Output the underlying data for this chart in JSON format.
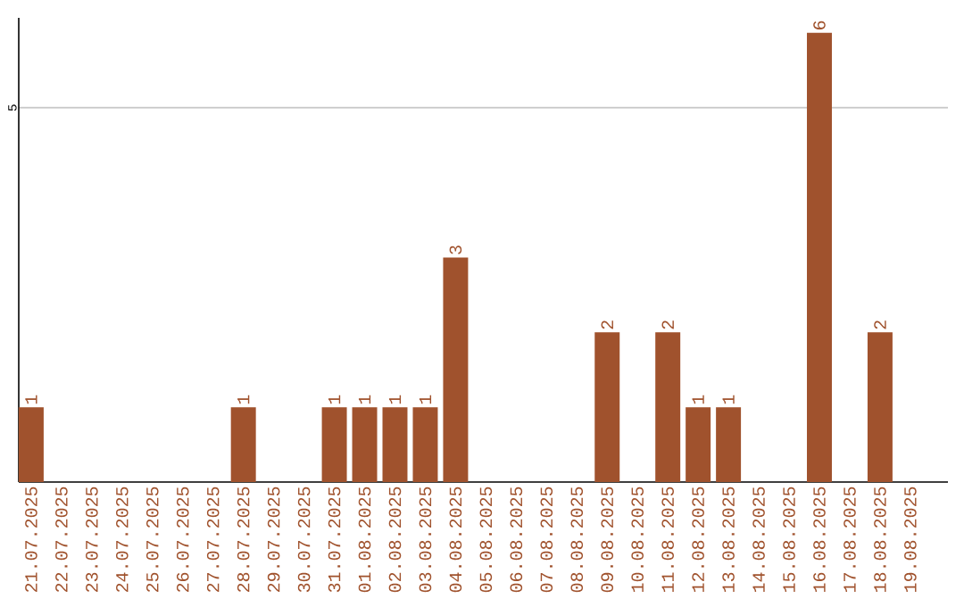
{
  "chart_data": {
    "type": "bar",
    "categories": [
      "21.07.2025",
      "22.07.2025",
      "23.07.2025",
      "24.07.2025",
      "25.07.2025",
      "26.07.2025",
      "27.07.2025",
      "28.07.2025",
      "29.07.2025",
      "30.07.2025",
      "31.07.2025",
      "01.08.2025",
      "02.08.2025",
      "03.08.2025",
      "04.08.2025",
      "05.08.2025",
      "06.08.2025",
      "07.08.2025",
      "08.08.2025",
      "09.08.2025",
      "10.08.2025",
      "11.08.2025",
      "12.08.2025",
      "13.08.2025",
      "14.08.2025",
      "15.08.2025",
      "16.08.2025",
      "17.08.2025",
      "18.08.2025",
      "19.08.2025"
    ],
    "values": [
      1,
      0,
      0,
      0,
      0,
      0,
      0,
      1,
      0,
      0,
      1,
      1,
      1,
      1,
      3,
      0,
      0,
      0,
      0,
      2,
      0,
      2,
      1,
      1,
      0,
      0,
      6,
      0,
      2,
      0
    ],
    "value_labels": [
      "1",
      null,
      null,
      null,
      null,
      null,
      null,
      "1",
      null,
      null,
      "1",
      "1",
      "1",
      "1",
      "3",
      null,
      null,
      null,
      null,
      "2",
      null,
      "2",
      "1",
      "1",
      null,
      null,
      "6",
      null,
      "2",
      null
    ],
    "color": "#a0522d",
    "ylim": [
      0,
      6.2
    ],
    "yticks": [
      5
    ],
    "grid": "y"
  }
}
